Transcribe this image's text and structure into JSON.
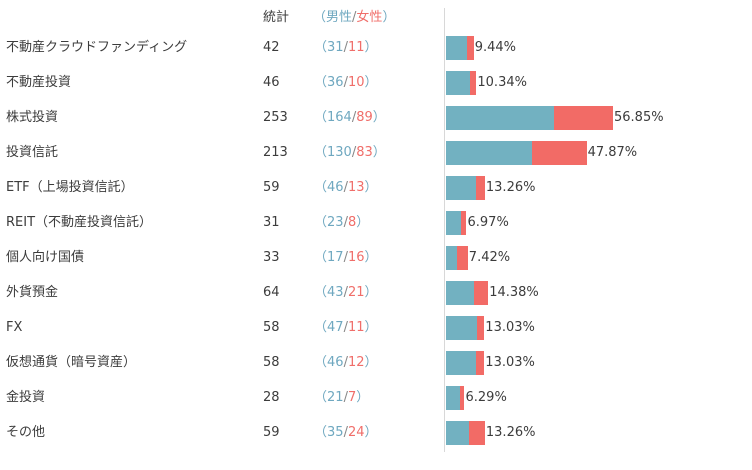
{
  "chart_data": {
    "type": "bar",
    "header": {
      "total_label": "統計",
      "male_label": "男性",
      "female_label": "女性",
      "open_paren": "（",
      "close_paren": "）",
      "separator": "/"
    },
    "categories": [
      "不動産クラウドファンディング",
      "不動産投資",
      "株式投資",
      "投資信託",
      "ETF（上場投資信託）",
      "REIT（不動産投資信託）",
      "個人向け国債",
      "外貨預金",
      "FX",
      "仮想通貨（暗号資産）",
      "金投資",
      "その他"
    ],
    "totals": [
      42,
      46,
      253,
      213,
      59,
      31,
      33,
      64,
      58,
      58,
      28,
      59
    ],
    "series": [
      {
        "name": "男性",
        "values": [
          31,
          36,
          164,
          130,
          46,
          23,
          17,
          43,
          47,
          46,
          21,
          35
        ],
        "color": "#72b1c1"
      },
      {
        "name": "女性",
        "values": [
          11,
          10,
          89,
          83,
          13,
          8,
          16,
          21,
          11,
          12,
          7,
          24
        ],
        "color": "#f26b66"
      }
    ],
    "percentages": [
      "9.44%",
      "10.34%",
      "56.85%",
      "47.87%",
      "13.26%",
      "6.97%",
      "7.42%",
      "14.38%",
      "13.03%",
      "13.03%",
      "6.29%",
      "13.26%"
    ]
  }
}
